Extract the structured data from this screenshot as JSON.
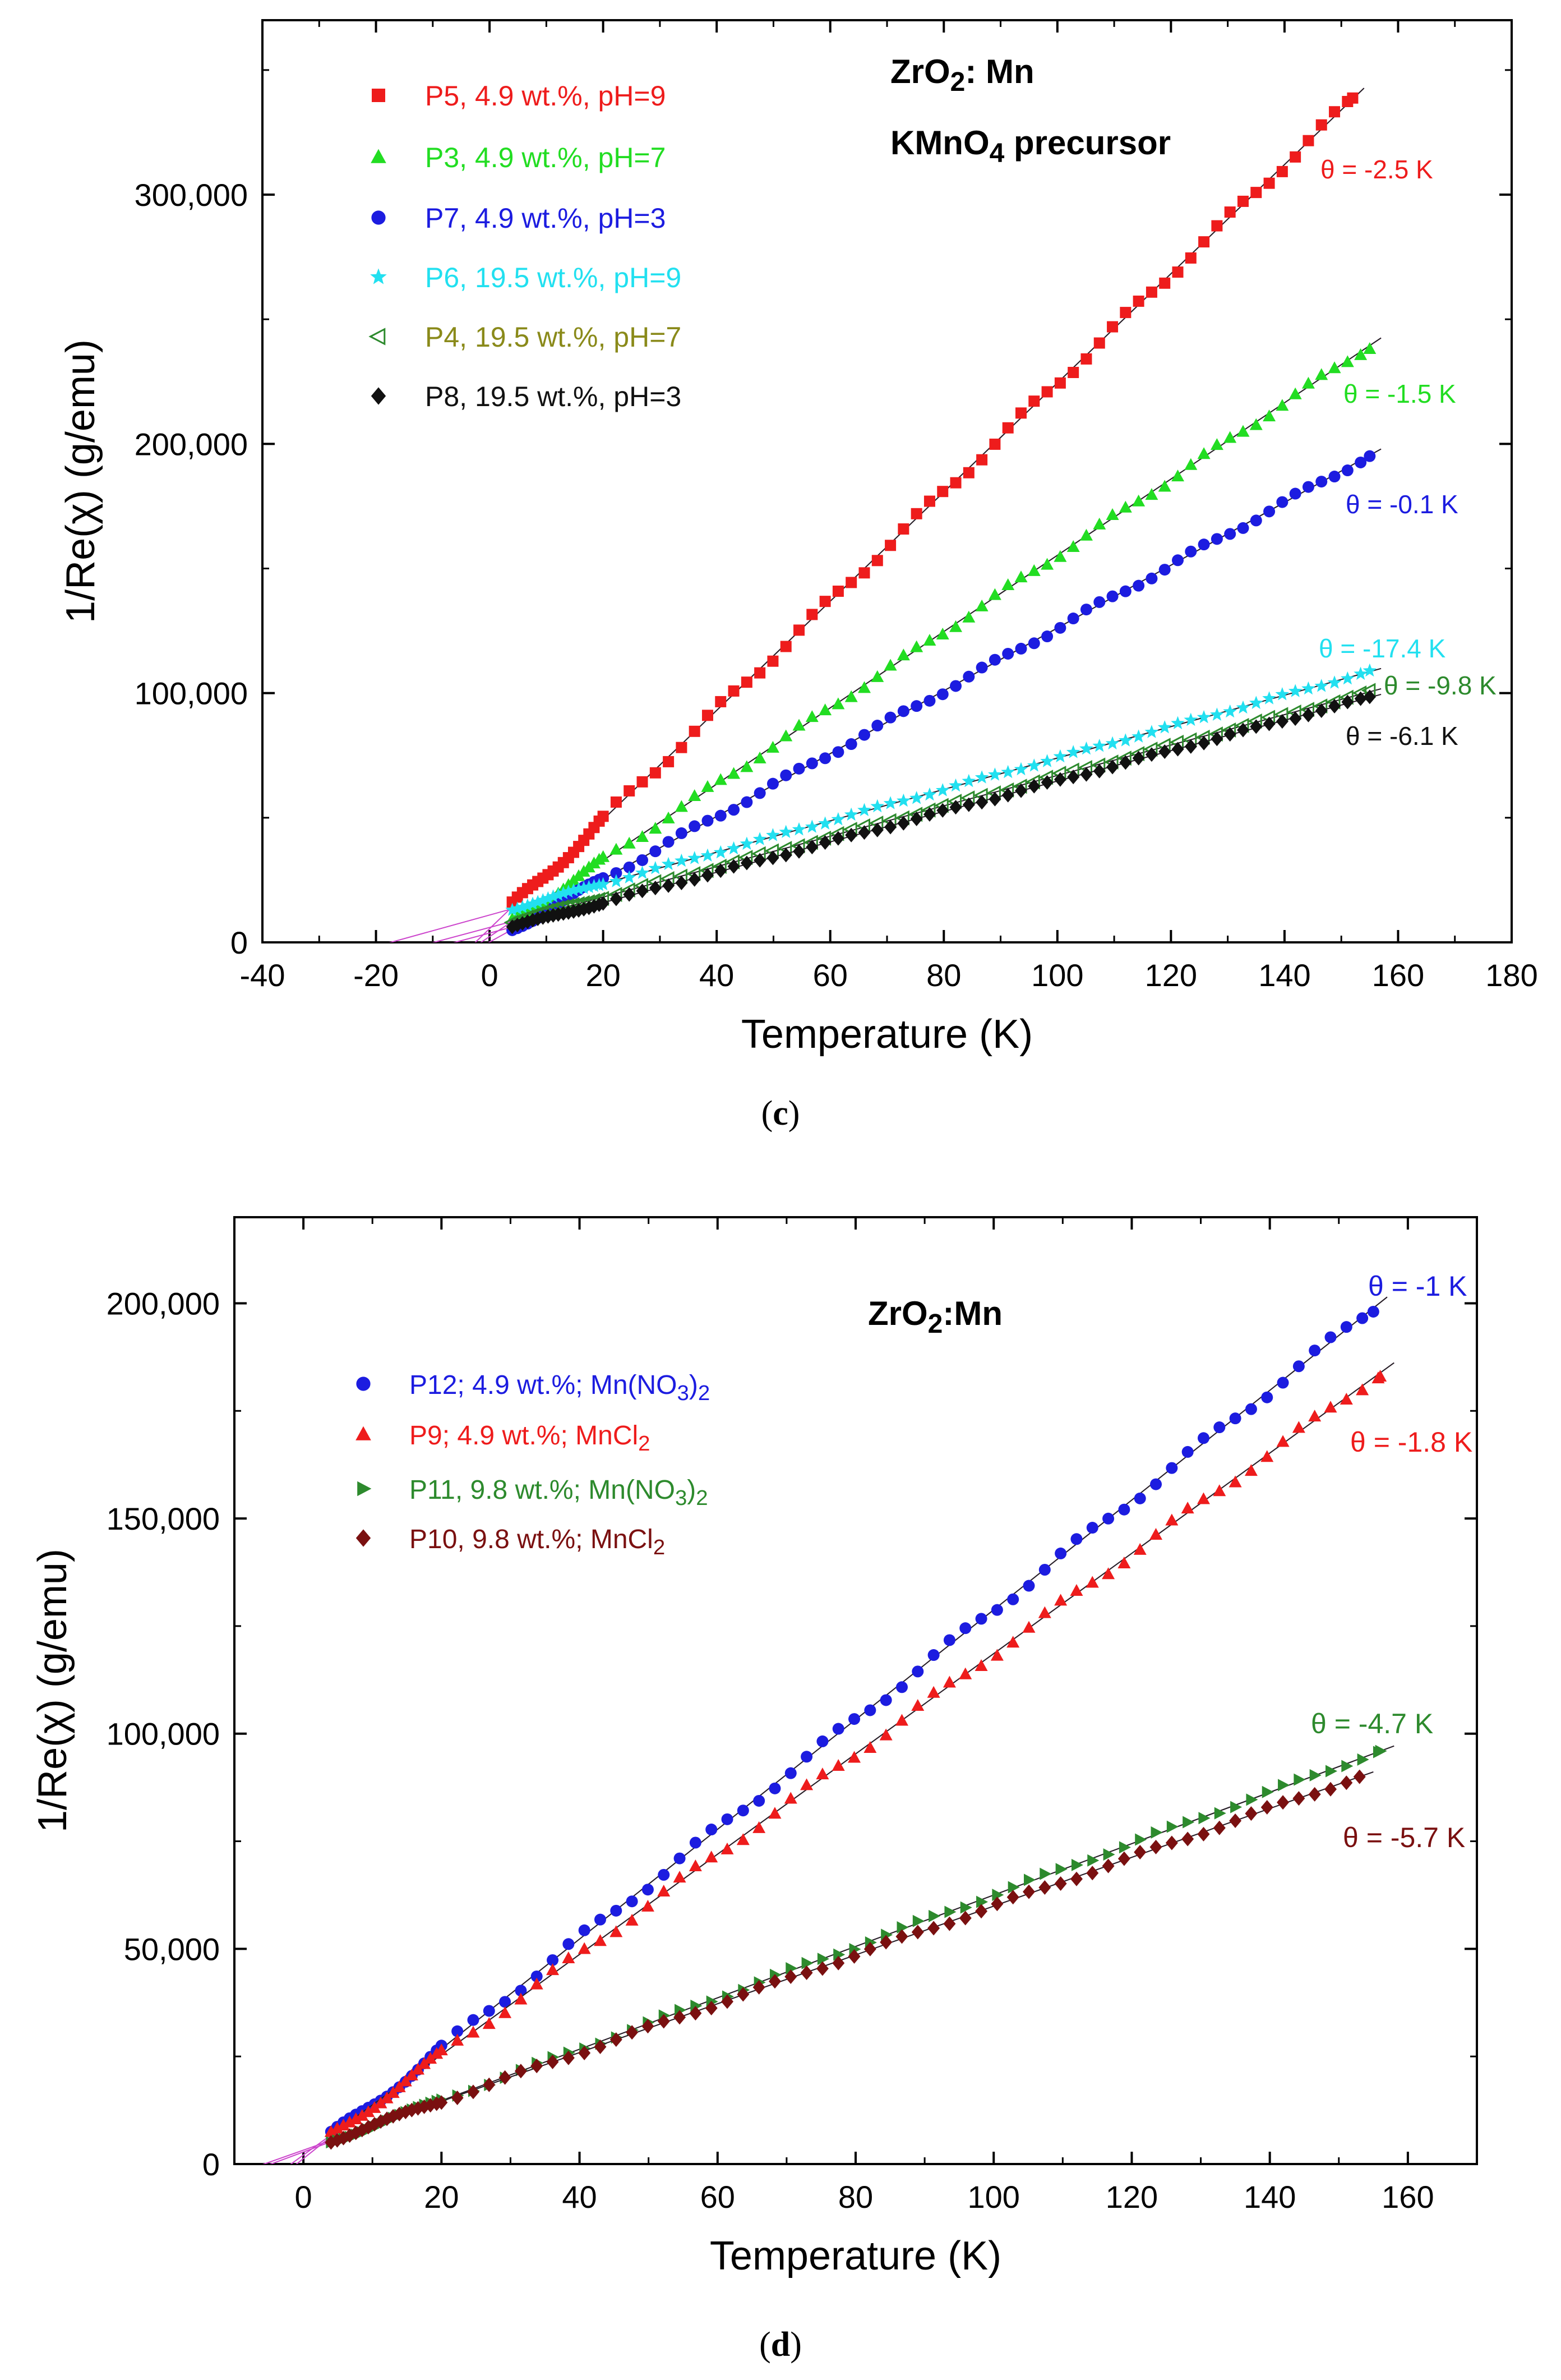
{
  "colors": {
    "red": "#ee1c1c",
    "green": "#22dd22",
    "blue": "#1c1ce0",
    "cyan": "#22e0f0",
    "olive": "#8a8a1a",
    "black": "#111111",
    "darkgreen": "#2d8a2d",
    "maroon": "#7a1010",
    "fit": "#cc44cc"
  },
  "panels": [
    {
      "caption": "c",
      "title_line1": {
        "base": "ZrO",
        "sub": "2",
        "rest": ": Mn"
      },
      "title_line2": {
        "base": "KMnO",
        "sub": "4",
        "rest": " precursor"
      },
      "chart_data": {
        "type": "scatter",
        "xlabel": "Temperature (K)",
        "ylabel": "1/Re(χ) (g/emu)",
        "xlim": [
          -40,
          180
        ],
        "ylim": [
          0,
          370000
        ],
        "xticks": [
          -40,
          -20,
          0,
          20,
          40,
          60,
          80,
          100,
          120,
          140,
          160,
          180
        ],
        "yticks": [
          0,
          100000,
          200000,
          300000
        ],
        "ytick_labels": [
          "0",
          "100,000",
          "200,000",
          "300,000"
        ],
        "legend_position": "top-left",
        "series": [
          {
            "name": "P5, 4.9 wt.%, pH=9",
            "color_key": "red",
            "marker": "square",
            "tmin": 4,
            "tmax": 152,
            "slope": 2190,
            "theta": -2.5,
            "theta_label": "θ = -2.5 K"
          },
          {
            "name": "P3, 4.9 wt.%, pH=7",
            "color_key": "green",
            "marker": "triangle",
            "tmin": 4,
            "tmax": 155,
            "slope": 1530,
            "theta": -1.5,
            "theta_label": "θ = -1.5 K"
          },
          {
            "name": "P7, 4.9 wt.%, pH=3",
            "color_key": "blue",
            "marker": "circle",
            "tmin": 4,
            "tmax": 155,
            "slope": 1260,
            "theta": -0.1,
            "theta_label": "θ = -0.1 K"
          },
          {
            "name": "P6, 19.5 wt.%, pH=9",
            "color_key": "cyan",
            "marker": "star",
            "tmin": 4,
            "tmax": 155,
            "slope": 630,
            "theta": -17.4,
            "theta_label": "θ = -17.4 K"
          },
          {
            "name": "P4, 19.5 wt.%, pH=7",
            "color_key": "darkgreen",
            "marker": "triangle-left",
            "tmin": 4,
            "tmax": 155,
            "slope": 610,
            "theta": -9.8,
            "theta_label": "θ = -9.8 K"
          },
          {
            "name": "P8, 19.5 wt.%, pH=3",
            "color_key": "black",
            "marker": "diamond",
            "tmin": 4,
            "tmax": 155,
            "slope": 610,
            "theta": -6.1,
            "theta_label": "θ = -6.1 K"
          }
        ]
      }
    },
    {
      "caption": "d",
      "title_line1": {
        "base": "ZrO",
        "sub": "2",
        "rest": ":Mn"
      },
      "chart_data": {
        "type": "scatter",
        "xlabel": "Temperature (K)",
        "ylabel": "1/Re(χ) (g/emu)",
        "xlim": [
          -10,
          170
        ],
        "ylim": [
          0,
          220000
        ],
        "xticks": [
          0,
          20,
          40,
          60,
          80,
          100,
          120,
          140,
          160
        ],
        "yticks": [
          0,
          50000,
          100000,
          150000,
          200000
        ],
        "ytick_labels": [
          "0",
          "50,000",
          "100,000",
          "150,000",
          "200,000"
        ],
        "legend_position": "top-left",
        "series": [
          {
            "name_parts": [
              "P12; 4.9 wt.%; Mn(NO",
              "3",
              ")",
              "2"
            ],
            "name_style": [
              "",
              "sub",
              "",
              "sub"
            ],
            "color_key": "blue",
            "marker": "circle",
            "tmin": 4,
            "tmax": 155,
            "slope": 1275,
            "theta": -1,
            "theta_label": "θ = -1 K"
          },
          {
            "name_parts": [
              "P9; 4.9 wt.%; MnCl",
              "2"
            ],
            "name_style": [
              "",
              "sub"
            ],
            "color_key": "red",
            "marker": "triangle",
            "tmin": 4,
            "tmax": 156,
            "slope": 1165,
            "theta": -1.8,
            "theta_label": "θ = -1.8 K"
          },
          {
            "name_parts": [
              "P11, 9.8 wt.%; Mn(NO",
              "3",
              ")",
              "2"
            ],
            "name_style": [
              "",
              "sub",
              "",
              "sub"
            ],
            "color_key": "darkgreen",
            "marker": "triangle-right",
            "tmin": 4,
            "tmax": 156,
            "slope": 597,
            "theta": -4.7,
            "theta_label": "θ = -4.7 K"
          },
          {
            "name_parts": [
              "P10, 9.8 wt.%; MnCl",
              "2"
            ],
            "name_style": [
              "",
              "sub"
            ],
            "color_key": "maroon",
            "marker": "diamond",
            "tmin": 4,
            "tmax": 153,
            "slope": 567,
            "theta": -5.7,
            "theta_label": "θ = -5.7 K"
          }
        ]
      }
    }
  ]
}
